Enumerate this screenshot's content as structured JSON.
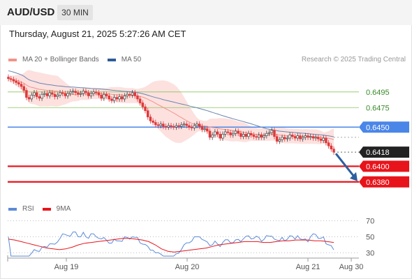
{
  "header": {
    "symbol": "AUD/USD",
    "timeframe": "30 MIN"
  },
  "datetime": "Thursday, August 21, 2025 5:27:26 AM CET",
  "research": "Research © 2025 Trading Central",
  "legend_main": [
    {
      "label": "MA 20 + Bollinger Bands",
      "color": "#f4928a"
    },
    {
      "label": "MA 50",
      "color": "#2e5b99"
    }
  ],
  "legend_rsi": [
    {
      "label": "RSI",
      "color": "#5b8ad8"
    },
    {
      "label": "9MA",
      "color": "#e8141b"
    }
  ],
  "colors": {
    "up": "#444444",
    "down": "#e0393b",
    "level_green": "#8cc45a",
    "level_blue": "#4a86e8",
    "level_red": "#e8141b",
    "last_label": "#222222",
    "arrow": "#2d5f9e"
  },
  "chart_data": [
    {
      "type": "candlestick",
      "x_ticks": [
        "Aug 19",
        "Aug 20",
        "Aug 21",
        "Aug 30"
      ],
      "ylim": [
        0.637,
        0.651
      ],
      "horizontal_levels": [
        {
          "value": 0.6495,
          "label": "0.6495",
          "style": "green-thin"
        },
        {
          "value": 0.6475,
          "label": "0.6475",
          "style": "green-thin"
        },
        {
          "value": 0.645,
          "label": "0.6450",
          "style": "blue"
        },
        {
          "value": 0.6418,
          "label": "0.6418",
          "style": "last-price"
        },
        {
          "value": 0.64,
          "label": "0.6400",
          "style": "red"
        },
        {
          "value": 0.638,
          "label": "0.6380",
          "style": "red"
        }
      ],
      "close_series": [
        0.6512,
        0.6511,
        0.6509,
        0.6507,
        0.6505,
        0.6502,
        0.6497,
        0.6488,
        0.6486,
        0.6491,
        0.6494,
        0.6489,
        0.6487,
        0.6492,
        0.6493,
        0.649,
        0.6494,
        0.6492,
        0.6489,
        0.6491,
        0.6494,
        0.6493,
        0.649,
        0.6493,
        0.6495,
        0.6496,
        0.6494,
        0.6492,
        0.6493,
        0.6496,
        0.6494,
        0.649,
        0.6493,
        0.6495,
        0.6494,
        0.6491,
        0.6487,
        0.6492,
        0.649,
        0.6486,
        0.6484,
        0.6488,
        0.6486,
        0.6489,
        0.6486,
        0.649,
        0.6492,
        0.6491,
        0.6494,
        0.649,
        0.6486,
        0.6481,
        0.6476,
        0.6471,
        0.6463,
        0.6458,
        0.6456,
        0.6453,
        0.6452,
        0.6454,
        0.6451,
        0.645,
        0.6452,
        0.6451,
        0.645,
        0.6452,
        0.6451,
        0.6453,
        0.6454,
        0.6452,
        0.645,
        0.6449,
        0.6452,
        0.6454,
        0.6451,
        0.6447,
        0.6448,
        0.6445,
        0.6437,
        0.644,
        0.6444,
        0.6441,
        0.6436,
        0.6441,
        0.6444,
        0.6443,
        0.644,
        0.6442,
        0.6445,
        0.6442,
        0.6438,
        0.6441,
        0.6438,
        0.6442,
        0.644,
        0.6438,
        0.6437,
        0.644,
        0.6437,
        0.6439,
        0.6442,
        0.6443,
        0.6446,
        0.6438,
        0.6432,
        0.6434,
        0.6437,
        0.6435,
        0.6436,
        0.644,
        0.6438,
        0.6436,
        0.6439,
        0.6435,
        0.6437,
        0.6439,
        0.6437,
        0.6438,
        0.6436,
        0.6437,
        0.6435,
        0.6433,
        0.6436,
        0.643,
        0.6426,
        0.6422,
        0.6418
      ],
      "forecast_target": 0.638
    },
    {
      "type": "line",
      "title": "RSI",
      "ylim": [
        20,
        80
      ],
      "y_ticks": [
        70,
        50,
        30
      ],
      "ma9_values": [
        47,
        46,
        44,
        42,
        40,
        38,
        36,
        35,
        34,
        35,
        37,
        40,
        42,
        43,
        44,
        45,
        46,
        47,
        48,
        48,
        47,
        46,
        44,
        40,
        35,
        32,
        31,
        32,
        33,
        34,
        35,
        36,
        38,
        40,
        41,
        42,
        43,
        44,
        44,
        44,
        43,
        43,
        44,
        45,
        45,
        46,
        46,
        46,
        45,
        45,
        44,
        43
      ]
    }
  ]
}
